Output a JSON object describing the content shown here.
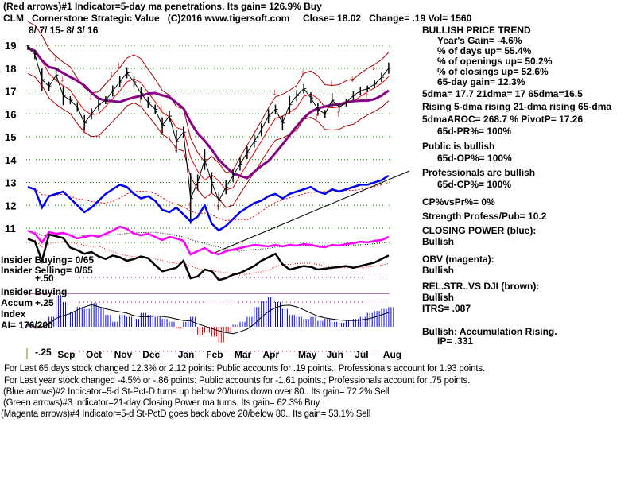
{
  "header": {
    "line1": "(Red arrows)#1 Indicator=5-day ma penetrations. Its gain= 126.9% Buy",
    "symbol": "CLM",
    "name": "Cornerstone Strategic Value",
    "copyright": "(C)2016 www.tigersoft.com",
    "close": "Close=  18.02",
    "change": "Change= .19",
    "vol": "Vol= 1560",
    "dates": "8/ 7/ 15- 8/ 3/ 16"
  },
  "right_panel": {
    "trend": "BULLISH PRICE TREND",
    "years_gain": "Year's Gain= -4.6%",
    "days_up": "% of days up= 55.4%",
    "openings_up": "% of openings up= 50.2%",
    "closings_up": "% of closings up= 52.6%",
    "gain65": "65-day gain= 12.3%",
    "dma": "5dma= 17.7 21dma= 17 65dma=16.5",
    "rising": "Rising 5-dma rising 21-dma rising 65-dma",
    "aroc": "5dmaAROC= 268.7 %  PivotP= 17.26",
    "pr": "65d-PR%= 100%",
    "public": "Public is bullish",
    "op": "65d-OP%= 100%",
    "pros": "Professionals are bullish",
    "cp": "65d-CP%= 100%",
    "cpvspr": "CP%vsPr%=  0%",
    "strength": "Strength Profess/Pub= 10.2",
    "closing_power": "CLOSING POWER (blue):",
    "cp_state": "Bullish",
    "obv": "OBV (magenta):",
    "obv_state": "Bullish",
    "relstr": "REL.STR..VS DJI (brown):",
    "relstr_state": "Bullish",
    "itrs": "ITRS= .087",
    "accum": "Bullish: Accumulation Rising.",
    "ip": "IP=  .331"
  },
  "left_labels": {
    "insider_buying": "Insider Buying= 0/65",
    "insider_selling": "Insider Selling= 0/65",
    "insider_buying2": "Insider Buying",
    "accum": "Accum",
    "index": "Index",
    "ai": "AI= 176/200"
  },
  "footer": {
    "l1": "For Last 65 days stock changed  12.3% or  2.12 points:  Public accounts for  .19 points.;  Professionals account for  1.93 points.",
    "l2": "For Last year stock changed -4.5% or -.86 points:  Public accounts for -1.61 points.;  Professionals account for  .75 points.",
    "l3": "(Blue arrows)#2 Indicator=5-d St-Pct-D turns up below 20/turns down over 80.. Its gain= 72.2% Sell",
    "l4": "(Green arrows)#3 Indicator=21-day Closing Power ma turns. Its gain= 62.3% Buy",
    "l5": "(Magenta arrows)#4 Indicator=5-d St-PctD goes back above 20/below 80.. Its gain= 53.1% Sell"
  },
  "chart_data": {
    "type": "line",
    "title": "CLM Cornerstone Strategic Value",
    "price_ticks": [
      "19",
      "18",
      "17",
      "16",
      "15",
      "14",
      "13",
      "12",
      "11"
    ],
    "price_range": [
      11,
      19
    ],
    "accum_ticks": [
      "+.50",
      "+.25",
      "-.25"
    ],
    "months": [
      "Sep",
      "Oct",
      "Nov",
      "Dec",
      "Jan",
      "Feb",
      "Mar",
      "Apr",
      "May",
      "Jun",
      "Jul",
      "Aug"
    ],
    "month_week": [
      6,
      10,
      14,
      18,
      23,
      27,
      31,
      35,
      40,
      44,
      48,
      52
    ],
    "close": [
      18.9,
      18.6,
      17.5,
      17.2,
      17.7,
      16.8,
      16.6,
      16.3,
      15.6,
      16.0,
      16.4,
      16.6,
      17.0,
      17.4,
      17.8,
      17.4,
      16.9,
      16.5,
      16.2,
      15.5,
      15.9,
      14.8,
      15.2,
      12.3,
      13.0,
      14.0,
      13.0,
      12.2,
      12.8,
      13.3,
      13.8,
      14.3,
      14.8,
      15.3,
      15.9,
      16.2,
      15.6,
      16.4,
      16.8,
      17.1,
      16.7,
      16.2,
      16.0,
      16.6,
      16.3,
      16.5,
      16.8,
      17.0,
      17.1,
      17.3,
      17.6,
      18.0
    ],
    "closing_power": [
      12.8,
      12.7,
      11.9,
      12.4,
      12.5,
      12.6,
      12.3,
      12.0,
      11.7,
      11.9,
      12.2,
      12.5,
      12.7,
      12.9,
      12.8,
      12.5,
      12.3,
      12.4,
      12.2,
      11.8,
      11.7,
      11.9,
      11.6,
      11.3,
      11.5,
      12.0,
      11.2,
      10.9,
      11.1,
      11.4,
      11.7,
      11.9,
      12.1,
      12.2,
      12.4,
      12.5,
      12.3,
      12.5,
      12.6,
      12.7,
      12.8,
      12.6,
      12.5,
      12.7,
      12.6,
      12.7,
      12.8,
      12.9,
      12.9,
      13.0,
      13.1,
      13.3
    ],
    "obv": [
      70,
      66,
      55,
      68,
      66,
      67,
      64,
      60,
      62,
      64,
      62,
      66,
      70,
      75,
      72,
      66,
      64,
      66,
      62,
      58,
      62,
      60,
      57,
      40,
      44,
      48,
      42,
      40,
      44,
      46,
      48,
      50,
      52,
      51,
      50,
      52,
      50,
      52,
      51,
      53,
      52,
      50,
      49,
      52,
      51,
      53,
      54,
      56,
      55,
      57,
      58,
      62
    ],
    "rel_str": [
      65,
      62,
      40,
      70,
      68,
      66,
      55,
      52,
      48,
      50,
      45,
      42,
      46,
      44,
      40,
      42,
      45,
      43,
      35,
      28,
      30,
      32,
      40,
      20,
      22,
      30,
      28,
      18,
      20,
      24,
      26,
      30,
      34,
      40,
      44,
      48,
      36,
      30,
      32,
      34,
      33,
      30,
      31,
      32,
      33,
      34,
      32,
      34,
      36,
      38,
      42,
      46
    ],
    "accum_index": [
      0.02,
      -0.02,
      0.0,
      0.1,
      0.32,
      0.25,
      0.15,
      0.2,
      0.18,
      0.24,
      0.2,
      0.12,
      0.05,
      0.12,
      0.1,
      0.08,
      0.14,
      0.12,
      0.1,
      0.08,
      0.05,
      -0.02,
      0.05,
      0.1,
      -0.08,
      -0.06,
      -0.1,
      -0.16,
      -0.05,
      0.02,
      0.05,
      0.1,
      0.2,
      0.26,
      0.3,
      0.25,
      0.18,
      0.12,
      0.1,
      0.08,
      0.1,
      0.06,
      0.08,
      0.05,
      0.04,
      0.06,
      0.08,
      0.1,
      0.14,
      0.16,
      0.18,
      0.2
    ],
    "red_arrows": [
      [
        4,
        "down"
      ],
      [
        5,
        "down"
      ],
      [
        9,
        "down"
      ],
      [
        13,
        "down"
      ],
      [
        2,
        "up"
      ],
      [
        8,
        "up"
      ],
      [
        16,
        "up"
      ],
      [
        19,
        "up"
      ],
      [
        21,
        "up"
      ],
      [
        23,
        "up"
      ],
      [
        27,
        "up"
      ],
      [
        12,
        "down"
      ],
      [
        19,
        "down"
      ],
      [
        35,
        "down"
      ],
      [
        39,
        "down"
      ],
      [
        43,
        "down"
      ],
      [
        46,
        "down"
      ],
      [
        49,
        "down"
      ],
      [
        41,
        "up"
      ],
      [
        44,
        "up"
      ],
      [
        48,
        "up"
      ]
    ]
  }
}
